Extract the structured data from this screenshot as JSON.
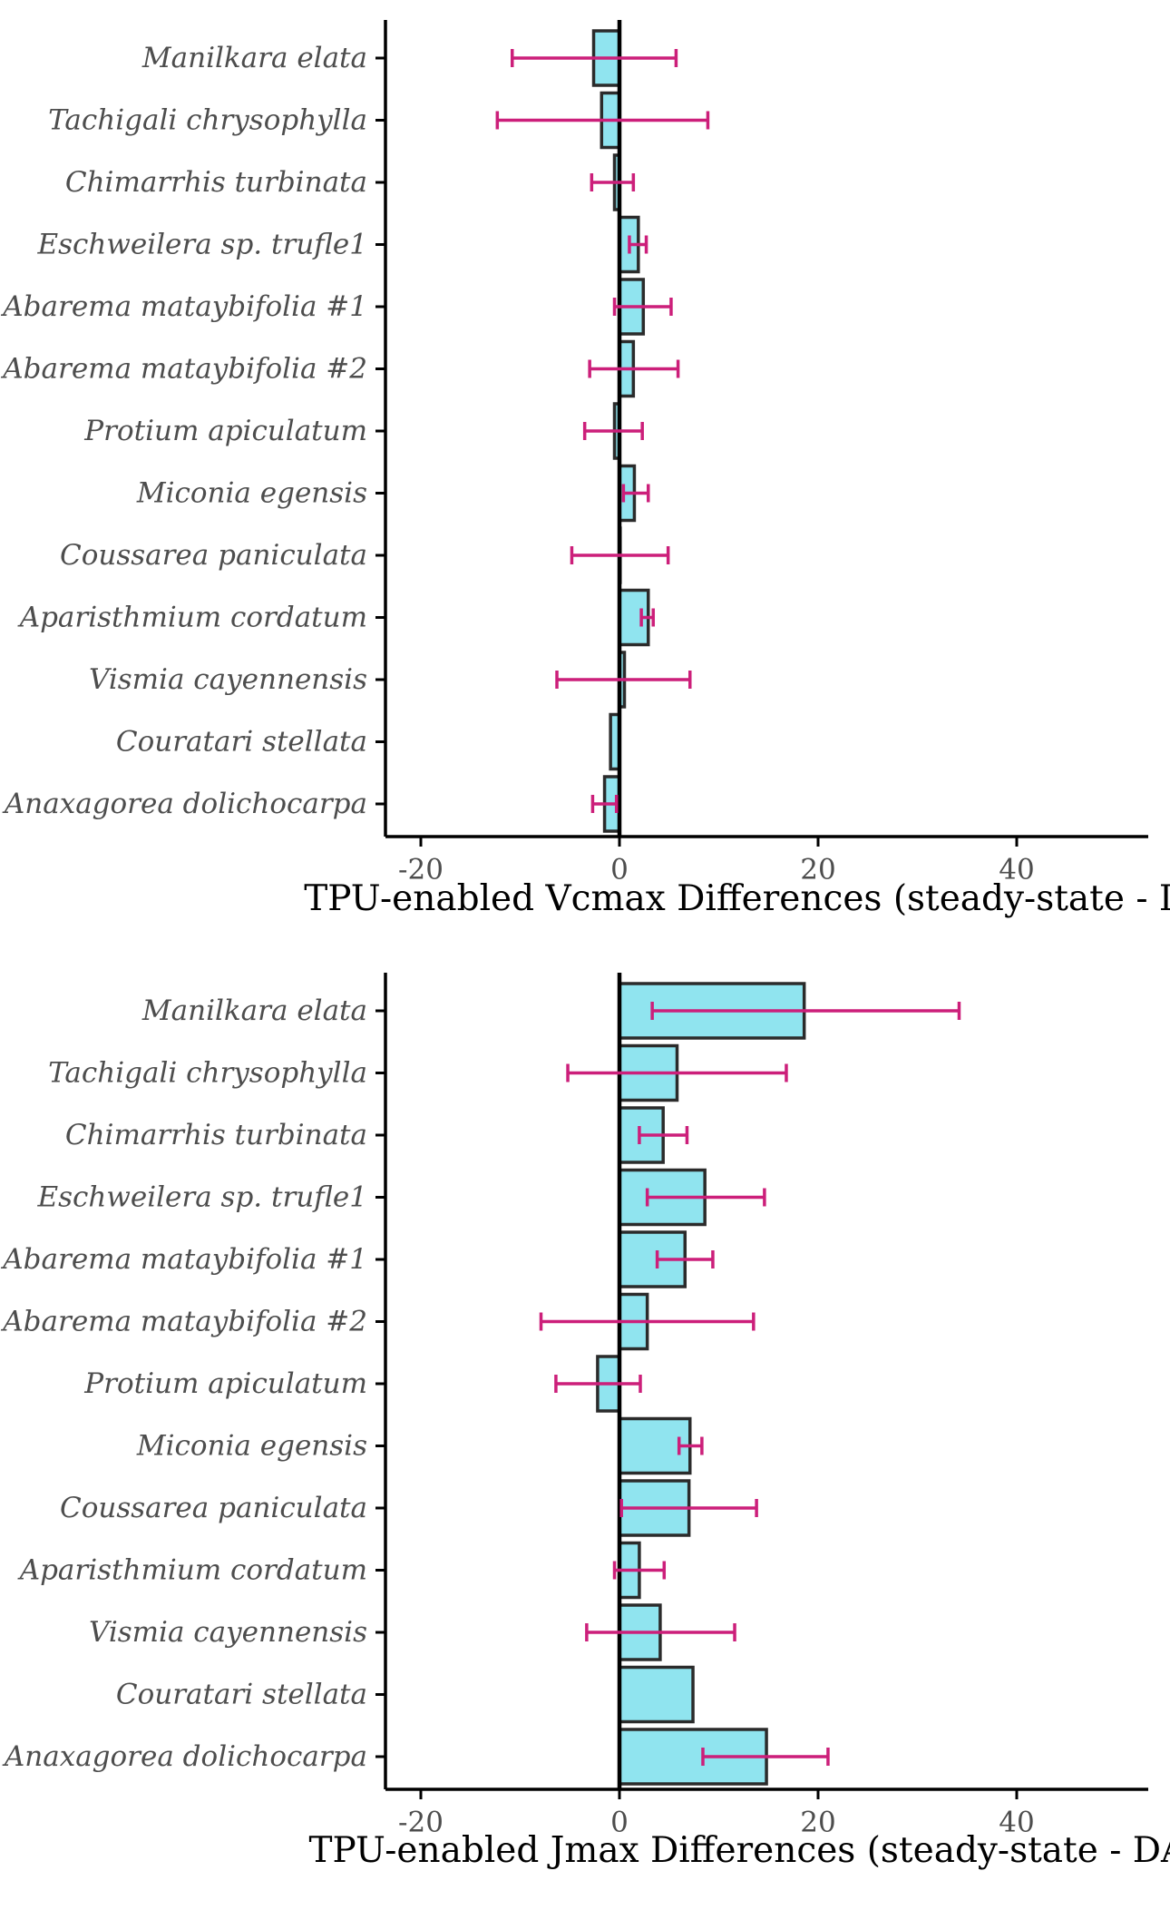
{
  "colors": {
    "bar_fill": "#90e4ef",
    "bar_stroke": "#2b2b2b",
    "error_bar": "#cc1f7a",
    "zero_line": "#000000",
    "axis": "#000000"
  },
  "chart_data": [
    {
      "type": "bar",
      "orientation": "horizontal",
      "xlabel": "TPU-enabled Vcmax Differences (steady-state - DA",
      "ylabel": "",
      "xlim": [
        -24,
        53
      ],
      "xticks": [
        -20,
        0,
        20,
        40
      ],
      "grid": false,
      "categories": [
        "Manilkara elata",
        "Tachigali chrysophylla",
        "Chimarrhis turbinata",
        "Eschweilera sp. trufle1",
        "Abarema mataybifolia #1",
        "Abarema mataybifolia #2",
        "Protium apiculatum",
        "Miconia egensis",
        "Coussarea paniculata",
        "Aparisthmium cordatum",
        "Vismia cayennensis",
        "Couratari stellata",
        "Anaxagorea dolichocarpa"
      ],
      "values": [
        -2.6,
        -1.8,
        -0.5,
        1.9,
        2.4,
        1.4,
        -0.5,
        1.5,
        0.0,
        2.9,
        0.5,
        -0.9,
        -1.5
      ],
      "error_low": [
        -10.8,
        -12.3,
        -2.8,
        1.0,
        -0.5,
        -3.0,
        -3.5,
        0.4,
        -4.8,
        2.2,
        -6.3,
        null,
        -2.7
      ],
      "error_high": [
        5.7,
        8.9,
        1.4,
        2.7,
        5.2,
        5.9,
        2.3,
        2.9,
        4.9,
        3.4,
        7.1,
        null,
        -0.3
      ]
    },
    {
      "type": "bar",
      "orientation": "horizontal",
      "xlabel": "TPU-enabled Jmax Differences (steady-state - DAT",
      "ylabel": "",
      "xlim": [
        -24,
        53
      ],
      "xticks": [
        -20,
        0,
        20,
        40
      ],
      "grid": false,
      "categories": [
        "Manilkara elata",
        "Tachigali chrysophylla",
        "Chimarrhis turbinata",
        "Eschweilera sp. trufle1",
        "Abarema mataybifolia #1",
        "Abarema mataybifolia #2",
        "Protium apiculatum",
        "Miconia egensis",
        "Coussarea paniculata",
        "Aparisthmium cordatum",
        "Vismia cayennensis",
        "Couratari stellata",
        "Anaxagorea dolichocarpa"
      ],
      "values": [
        18.6,
        5.8,
        4.4,
        8.6,
        6.6,
        2.8,
        -2.2,
        7.1,
        7.0,
        2.0,
        4.1,
        7.4,
        14.8
      ],
      "error_low": [
        3.3,
        -5.2,
        2.0,
        2.8,
        3.8,
        -7.9,
        -6.4,
        6.0,
        0.2,
        -0.5,
        -3.3,
        null,
        8.4
      ],
      "error_high": [
        34.2,
        16.8,
        6.8,
        14.6,
        9.4,
        13.5,
        2.1,
        8.3,
        13.8,
        4.5,
        11.6,
        null,
        21.0
      ]
    }
  ]
}
